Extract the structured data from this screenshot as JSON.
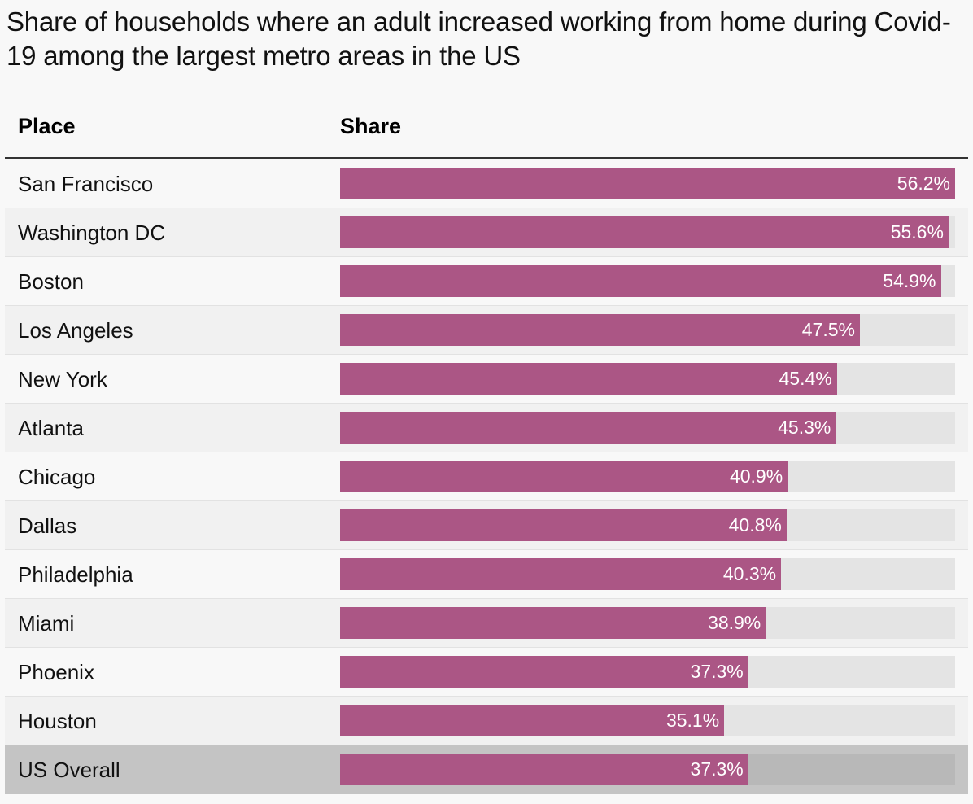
{
  "title": "Share of households where an adult increased working from home during Covid-19 among the largest metro areas in the US",
  "colors": {
    "bar": "#ab5685",
    "track": "#e4e4e4",
    "total_row": "#c4c4c4",
    "total_track": "#b8b8b8"
  },
  "chart_data": {
    "type": "bar",
    "orientation": "horizontal",
    "columns": [
      "Place",
      "Share"
    ],
    "categories": [
      "San Francisco",
      "Washington DC",
      "Boston",
      "Los Angeles",
      "New York",
      "Atlanta",
      "Chicago",
      "Dallas",
      "Philadelphia",
      "Miami",
      "Phoenix",
      "Houston",
      "US Overall"
    ],
    "values": [
      56.2,
      55.6,
      54.9,
      47.5,
      45.4,
      45.3,
      40.9,
      40.8,
      40.3,
      38.9,
      37.3,
      35.1,
      37.3
    ],
    "value_labels": [
      "56.2%",
      "55.6%",
      "54.9%",
      "47.5%",
      "45.4%",
      "45.3%",
      "40.9%",
      "40.8%",
      "40.3%",
      "38.9%",
      "37.3%",
      "35.1%",
      "37.3%"
    ],
    "xlim": [
      0,
      56.2
    ],
    "grid": false,
    "legend": "none"
  }
}
